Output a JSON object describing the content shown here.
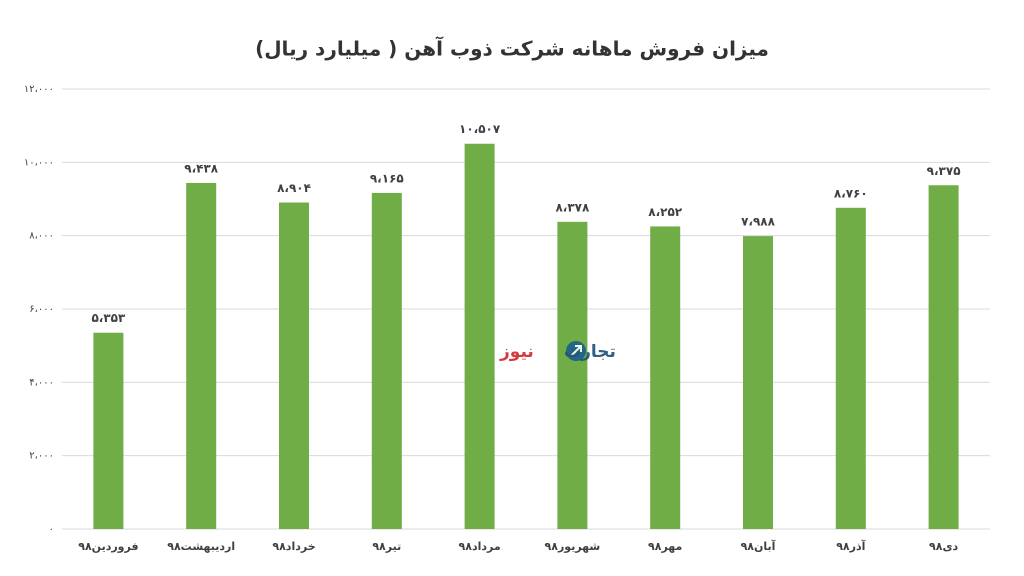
{
  "chart_data": {
    "type": "bar",
    "title": "میزان فروش ماهانه شرکت ذوب آهن ( میلیارد ریال)",
    "categories": [
      "فروردین۹۸",
      "اردیبهشت۹۸",
      "خرداد۹۸",
      "تیر۹۸",
      "مرداد۹۸",
      "شهریور۹۸",
      "مهر۹۸",
      "آبان۹۸",
      "آذر۹۸",
      "دی۹۸"
    ],
    "values": [
      5353,
      9438,
      8904,
      9165,
      10507,
      8378,
      8252,
      7988,
      8760,
      9375
    ],
    "value_labels": [
      "۵،۳۵۳",
      "۹،۴۳۸",
      "۸،۹۰۴",
      "۹،۱۶۵",
      "۱۰،۵۰۷",
      "۸،۳۷۸",
      "۸،۲۵۲",
      "۷،۹۸۸",
      "۸،۷۶۰",
      "۹،۳۷۵"
    ],
    "color": "#70ad47",
    "ylim": [
      0,
      12000
    ],
    "yticks": [
      {
        "value": 0,
        "label": "۰"
      },
      {
        "value": 2000,
        "label": "۲،۰۰۰"
      },
      {
        "value": 4000,
        "label": "۴،۰۰۰"
      },
      {
        "value": 6000,
        "label": "۶،۰۰۰"
      },
      {
        "value": 8000,
        "label": "۸،۰۰۰"
      },
      {
        "value": 10000,
        "label": "۱۰،۰۰۰"
      },
      {
        "value": 12000,
        "label": "۱۲،۰۰۰"
      }
    ],
    "grid": true
  },
  "watermark": {
    "brand": "تجارت",
    "suffix": "نیوز"
  }
}
